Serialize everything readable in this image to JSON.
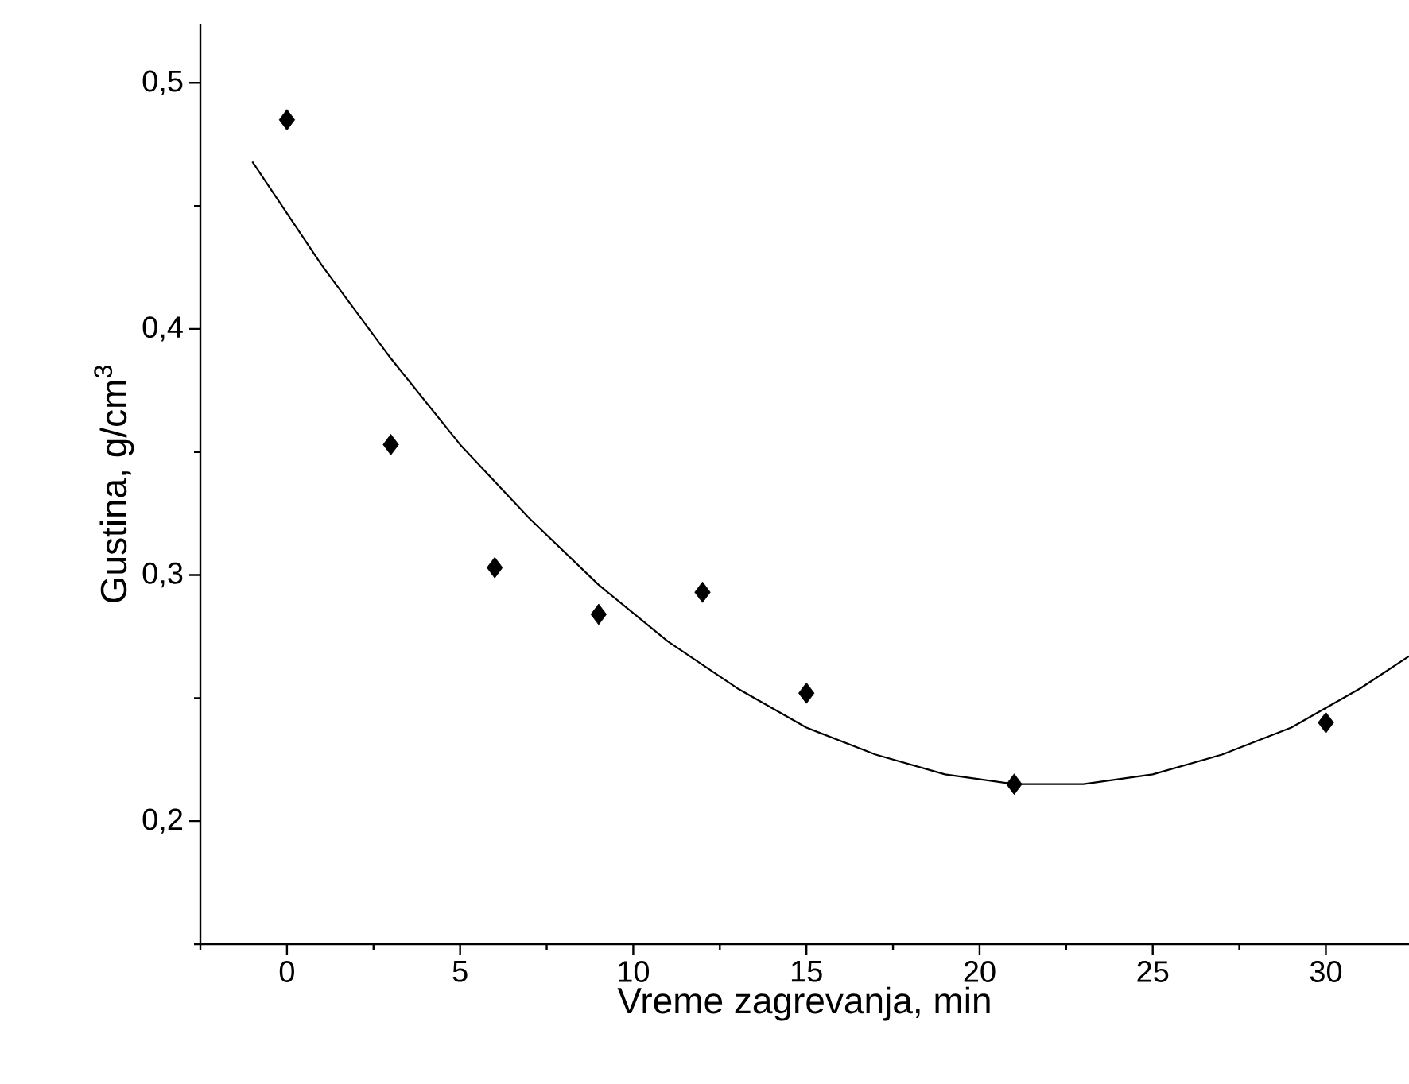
{
  "chart_data": {
    "type": "scatter",
    "xlabel": "Vreme zagrevanja, min",
    "ylabel": "Gustina, g/cm$^{3}$",
    "xlim": [
      -2.5,
      32.4
    ],
    "ylim": [
      0.15,
      0.524
    ],
    "xticks": [
      {
        "value": -2.5,
        "label": null
      },
      {
        "value": 0,
        "label": "0"
      },
      {
        "value": 2.5,
        "label": null
      },
      {
        "value": 5,
        "label": "5"
      },
      {
        "value": 7.5,
        "label": null
      },
      {
        "value": 10,
        "label": "10"
      },
      {
        "value": 12.5,
        "label": null
      },
      {
        "value": 15,
        "label": "15"
      },
      {
        "value": 17.5,
        "label": null
      },
      {
        "value": 20,
        "label": "20"
      },
      {
        "value": 22.5,
        "label": null
      },
      {
        "value": 25,
        "label": "25"
      },
      {
        "value": 27.5,
        "label": null
      },
      {
        "value": 30,
        "label": "30"
      }
    ],
    "yticks": [
      {
        "value": 0.15,
        "label": null
      },
      {
        "value": 0.2,
        "label": "0,2"
      },
      {
        "value": 0.25,
        "label": null
      },
      {
        "value": 0.3,
        "label": "0,3"
      },
      {
        "value": 0.35,
        "label": null
      },
      {
        "value": 0.4,
        "label": "0,4"
      },
      {
        "value": 0.45,
        "label": null
      },
      {
        "value": 0.5,
        "label": "0,5"
      }
    ],
    "series": [
      {
        "type": "scatter",
        "marker": "diamond",
        "color": "#000000",
        "x": [
          0,
          3,
          6,
          9,
          12,
          15,
          21,
          30
        ],
        "values": [
          0.485,
          0.353,
          0.303,
          0.284,
          0.293,
          0.252,
          0.215,
          0.24
        ]
      },
      {
        "type": "line",
        "marker": "none",
        "color": "#000000",
        "x": [
          -1,
          1,
          3,
          5,
          7,
          9,
          11,
          13,
          15,
          17,
          19,
          21,
          22,
          23,
          25,
          27,
          29,
          31,
          32.4
        ],
        "values": [
          0.468,
          0.426,
          0.388,
          0.353,
          0.323,
          0.296,
          0.273,
          0.254,
          0.238,
          0.227,
          0.219,
          0.215,
          0.215,
          0.215,
          0.219,
          0.227,
          0.238,
          0.254,
          0.267
        ]
      }
    ]
  }
}
